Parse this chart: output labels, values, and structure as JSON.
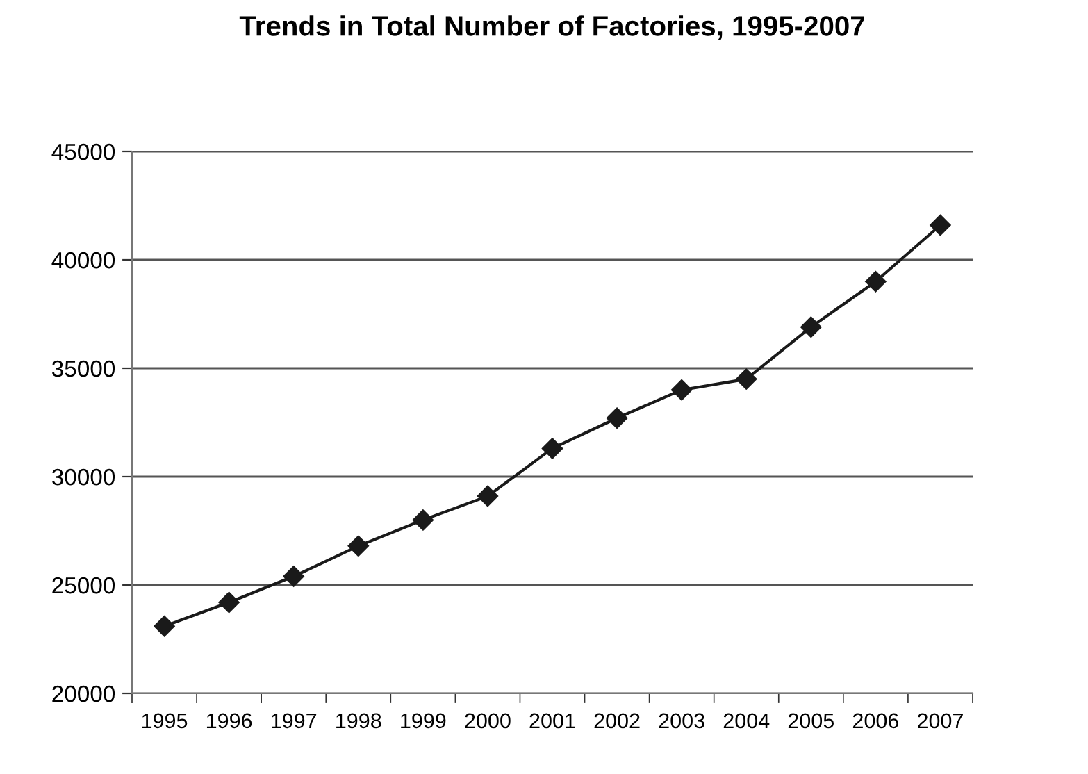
{
  "chart_data": {
    "type": "line",
    "title": "Trends in Total Number of Factories, 1995-2007",
    "categories": [
      "1995",
      "1996",
      "1997",
      "1998",
      "1999",
      "2000",
      "2001",
      "2002",
      "2003",
      "2004",
      "2005",
      "2006",
      "2007"
    ],
    "series": [
      {
        "color": "#1a1a1a",
        "values": [
          23100,
          24200,
          25400,
          26800,
          28000,
          29100,
          31300,
          32700,
          34000,
          34500,
          36900,
          39000,
          41600
        ]
      }
    ],
    "ylim": [
      20000,
      45000
    ],
    "yticks": [
      20000,
      25000,
      30000,
      35000,
      40000,
      45000
    ],
    "grid": "y",
    "marker": "diamond",
    "line_style": "solid",
    "legend": false
  }
}
